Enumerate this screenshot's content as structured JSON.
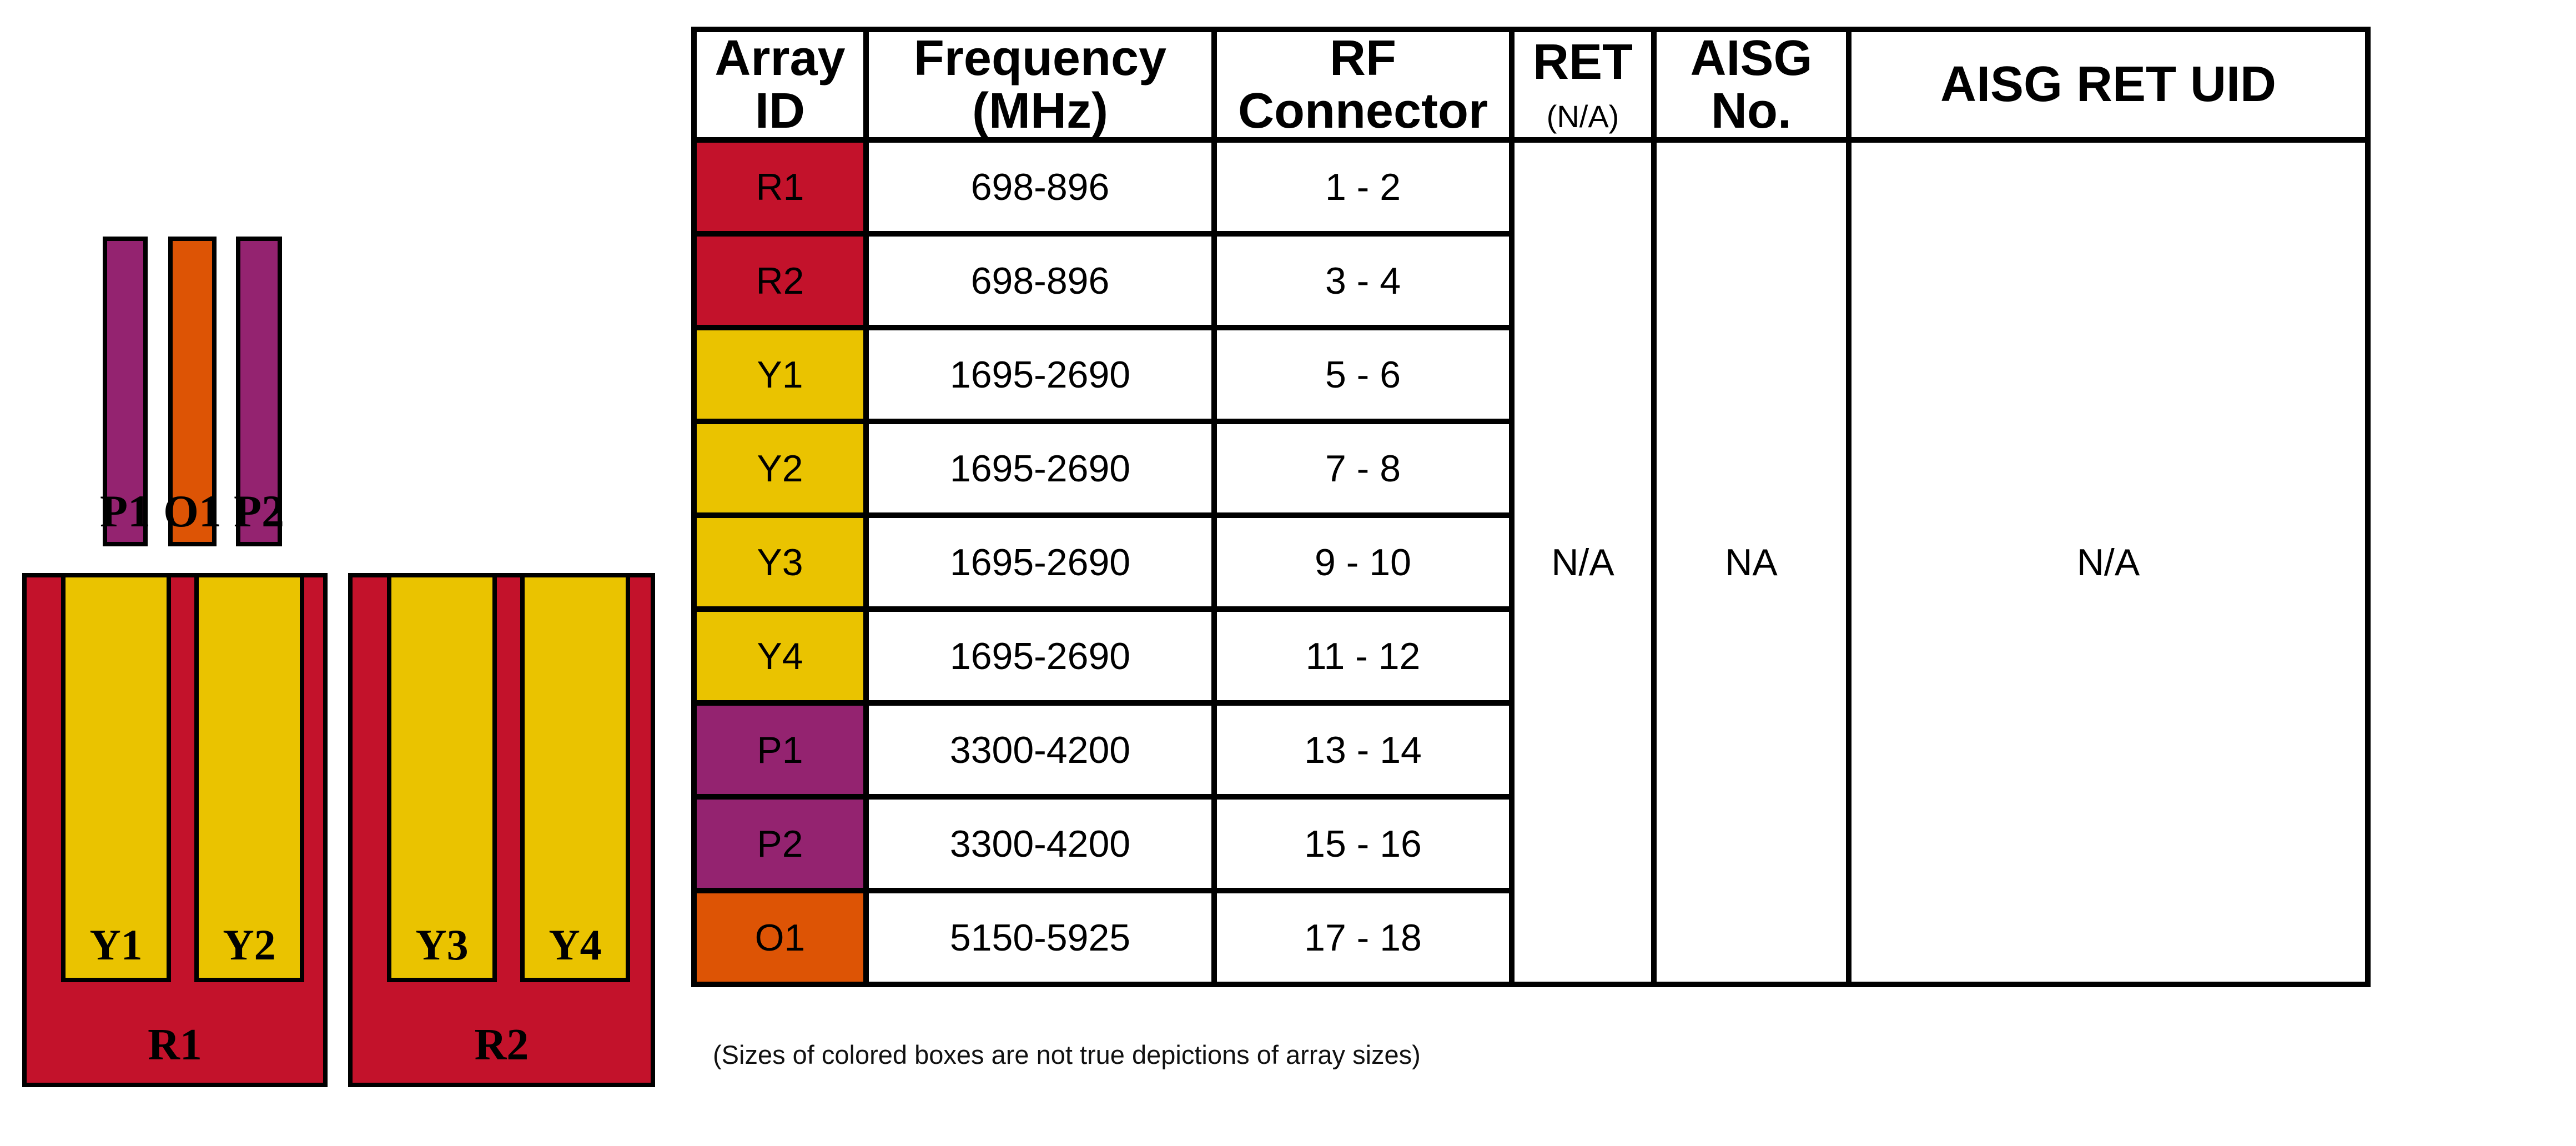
{
  "colors": {
    "red": "#C3122B",
    "yellow": "#EAC300",
    "purple": "#942370",
    "orange": "#DD5405",
    "border": "#000000"
  },
  "diagram": {
    "bars": [
      {
        "label": "P1",
        "color": "purple"
      },
      {
        "label": "O1",
        "color": "orange"
      },
      {
        "label": "P2",
        "color": "purple"
      }
    ],
    "groups": [
      {
        "label": "R1",
        "color": "red",
        "children": [
          {
            "label": "Y1",
            "color": "yellow"
          },
          {
            "label": "Y2",
            "color": "yellow"
          }
        ]
      },
      {
        "label": "R2",
        "color": "red",
        "children": [
          {
            "label": "Y3",
            "color": "yellow"
          },
          {
            "label": "Y4",
            "color": "yellow"
          }
        ]
      }
    ]
  },
  "table": {
    "headers": {
      "array_id": "Array ID",
      "frequency": "Frequency (MHz)",
      "rf_connector": "RF Connector",
      "ret": "RET",
      "ret_sub": "(N/A)",
      "aisg_no": "AISG No.",
      "aisg_ret_uid": "AISG RET UID"
    },
    "rows": [
      {
        "array_id": "R1",
        "color": "red",
        "frequency": "698-896",
        "rf_connector": "1 - 2"
      },
      {
        "array_id": "R2",
        "color": "red",
        "frequency": "698-896",
        "rf_connector": "3 - 4"
      },
      {
        "array_id": "Y1",
        "color": "yellow",
        "frequency": "1695-2690",
        "rf_connector": "5 - 6"
      },
      {
        "array_id": "Y2",
        "color": "yellow",
        "frequency": "1695-2690",
        "rf_connector": "7 - 8"
      },
      {
        "array_id": "Y3",
        "color": "yellow",
        "frequency": "1695-2690",
        "rf_connector": "9 - 10"
      },
      {
        "array_id": "Y4",
        "color": "yellow",
        "frequency": "1695-2690",
        "rf_connector": "11 - 12"
      },
      {
        "array_id": "P1",
        "color": "purple",
        "frequency": "3300-4200",
        "rf_connector": "13 - 14"
      },
      {
        "array_id": "P2",
        "color": "purple",
        "frequency": "3300-4200",
        "rf_connector": "15 - 16"
      },
      {
        "array_id": "O1",
        "color": "orange",
        "frequency": "5150-5925",
        "rf_connector": "17 - 18"
      }
    ],
    "merged": {
      "ret": "N/A",
      "aisg_no": "NA",
      "aisg_ret_uid": "N/A"
    }
  },
  "note": "(Sizes of colored boxes are not true depictions of array sizes)"
}
